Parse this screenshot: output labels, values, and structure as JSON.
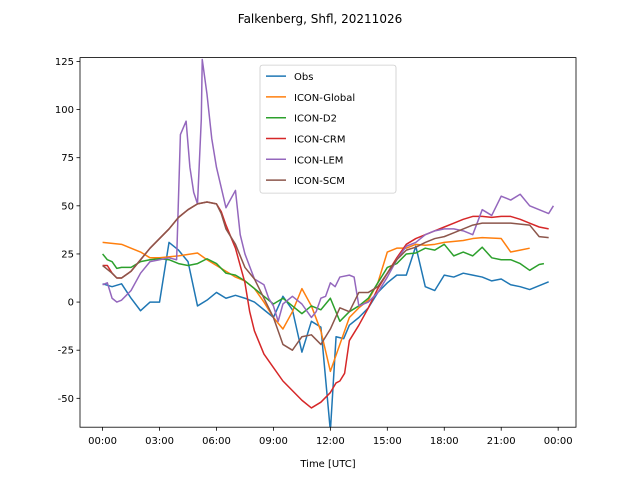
{
  "chart_data": {
    "type": "line",
    "title": "Falkenberg, Shfl, 20211026",
    "xlabel": "Time [UTC]",
    "xlim": [
      -1.19,
      24.94
    ],
    "ylim": [
      -65,
      127
    ],
    "xticks": [
      {
        "value": 0,
        "label": "00:00"
      },
      {
        "value": 3,
        "label": "03:00"
      },
      {
        "value": 6,
        "label": "06:00"
      },
      {
        "value": 9,
        "label": "09:00"
      },
      {
        "value": 12,
        "label": "12:00"
      },
      {
        "value": 15,
        "label": "15:00"
      },
      {
        "value": 18,
        "label": "18:00"
      },
      {
        "value": 21,
        "label": "21:00"
      },
      {
        "value": 24,
        "label": "00:00"
      }
    ],
    "yticks": [
      -50,
      -25,
      0,
      25,
      50,
      75,
      100,
      125
    ],
    "legend": "upper center",
    "series": [
      {
        "name": "Obs",
        "color": "#1f77b4",
        "x": [
          0,
          0.5,
          1,
          1.5,
          2,
          2.5,
          3,
          3.5,
          4,
          4.5,
          5,
          5.5,
          6,
          6.5,
          7,
          7.5,
          8,
          8.5,
          9,
          9.5,
          10,
          10.5,
          11,
          11.5,
          12,
          12.3,
          12.7,
          13,
          13.5,
          14,
          14.5,
          15,
          15.5,
          16,
          16.5,
          17,
          17.5,
          18,
          18.5,
          19,
          19.5,
          20,
          20.5,
          21,
          21.5,
          22,
          22.5,
          23,
          23.5
        ],
        "values": [
          9.5,
          8,
          9.5,
          2,
          -4.5,
          0,
          0,
          31,
          27,
          21,
          -2,
          1,
          5,
          2,
          3.5,
          2,
          0,
          -4,
          -8,
          3,
          -4,
          -26,
          -10,
          -13,
          -67,
          -18,
          -19,
          -12,
          -8,
          -3,
          5,
          10,
          14,
          14,
          29,
          8,
          6,
          14,
          13,
          15,
          14,
          13,
          11,
          12,
          9,
          8,
          6.5,
          8.5,
          10.5
        ]
      },
      {
        "name": "ICON-Global",
        "color": "#ff7f0e",
        "x": [
          0,
          1,
          2,
          2.5,
          3,
          4,
          5,
          5.5,
          6,
          6.5,
          7,
          7.5,
          8,
          8.5,
          9,
          9.5,
          10,
          10.5,
          11,
          11.5,
          12,
          12.5,
          13,
          13.5,
          14,
          14.5,
          15,
          15.5,
          16,
          16.5,
          17,
          17.5,
          18,
          19,
          19.5,
          20,
          21,
          21.5,
          22,
          22.5
        ],
        "values": [
          31,
          30,
          26,
          23,
          23,
          24,
          25.5,
          22,
          19,
          16,
          13,
          11,
          7,
          0,
          -8,
          -14,
          -5,
          7,
          -2,
          -15,
          -36,
          -22,
          -8,
          -3,
          1,
          10,
          26,
          28,
          28,
          30,
          29.5,
          30,
          31,
          32,
          33,
          33.5,
          33,
          26,
          27,
          28
        ]
      },
      {
        "name": "ICON-D2",
        "color": "#2ca02c",
        "x": [
          0,
          0.25,
          0.5,
          0.75,
          1,
          1.5,
          2,
          2.5,
          3,
          3.5,
          4,
          4.5,
          5,
          5.5,
          6,
          6.5,
          7,
          7.5,
          8,
          8.5,
          9,
          9.5,
          10,
          10.5,
          11,
          11.5,
          12,
          12.5,
          13,
          13.5,
          14,
          14.5,
          15,
          15.5,
          16,
          16.5,
          17,
          17.5,
          18,
          18.5,
          19,
          19.5,
          20,
          20.5,
          21,
          21.5,
          22,
          22.5,
          23,
          23.25
        ],
        "values": [
          25,
          22,
          21,
          17.5,
          18,
          18,
          21,
          22,
          22.5,
          22,
          20,
          19,
          20,
          22.5,
          20,
          15,
          14,
          11,
          7,
          3,
          -1,
          2,
          -2,
          -6,
          -2,
          -4,
          2,
          -10,
          -5,
          -2,
          2,
          10,
          18,
          20,
          25,
          25.5,
          28,
          27,
          30,
          24,
          26,
          24,
          28.5,
          23,
          22,
          22,
          20,
          16.5,
          19.5,
          20
        ]
      },
      {
        "name": "ICON-CRM",
        "color": "#d62728",
        "x": [
          0,
          0.25,
          0.5,
          0.75,
          1,
          1.5,
          2,
          2.5,
          3,
          3.5,
          4,
          4.5,
          5,
          5.5,
          6,
          6.25,
          6.5,
          7,
          7.5,
          7.75,
          8,
          8.5,
          9,
          9.5,
          10,
          10.5,
          11,
          11.5,
          12,
          12.3,
          12.5,
          12.75,
          13,
          13.5,
          14,
          14.5,
          15,
          15.5,
          16,
          16.5,
          17,
          17.5,
          18,
          18.5,
          19,
          19.5,
          20,
          20.5,
          21,
          21.5,
          22,
          22.5,
          23,
          23.5
        ],
        "values": [
          19,
          19,
          15,
          12.5,
          12.5,
          16,
          22,
          28,
          33,
          38,
          44,
          48,
          51,
          52,
          51,
          47,
          40,
          28,
          10,
          -5,
          -15,
          -27,
          -34,
          -41,
          -46,
          -51,
          -55,
          -52,
          -47,
          -42,
          -41,
          -37,
          -20,
          -12,
          -3,
          7,
          15,
          23,
          30,
          33,
          35,
          37,
          39,
          41,
          43,
          44.5,
          44.5,
          44,
          44.5,
          44.5,
          43,
          41,
          39,
          38
        ]
      },
      {
        "name": "ICON-LEM",
        "color": "#9467bd",
        "x": [
          0,
          0.25,
          0.5,
          0.75,
          1,
          1.5,
          2,
          2.5,
          3,
          3.5,
          3.9,
          4.1,
          4.4,
          4.6,
          4.8,
          5,
          5.2,
          5.25,
          5.5,
          5.75,
          6,
          6.5,
          7,
          7.25,
          7.5,
          8,
          8.5,
          8.75,
          9,
          9.25,
          9.5,
          10,
          10.5,
          11,
          11.25,
          11.5,
          11.75,
          12,
          12.25,
          12.5,
          13,
          13.25,
          13.5,
          14,
          14.5,
          15,
          15.5,
          16,
          16.5,
          17,
          17.5,
          18,
          18.5,
          19,
          19.5,
          20,
          20.5,
          21,
          21.5,
          22,
          22.5,
          23,
          23.5,
          23.75
        ],
        "values": [
          9,
          10,
          2,
          0,
          1,
          6,
          15,
          21,
          22,
          23,
          22,
          87,
          94,
          70,
          57,
          51,
          95,
          126,
          108,
          85,
          70,
          49,
          58,
          35,
          25,
          12,
          9,
          2,
          -2,
          -10,
          -1,
          3,
          -1,
          -8,
          -5,
          2,
          3,
          10,
          8,
          13,
          14,
          13,
          -2,
          0,
          5,
          13,
          22,
          29,
          31,
          35,
          37,
          38,
          38,
          37,
          35,
          48,
          45,
          55,
          53,
          56,
          50,
          48,
          46,
          50
        ]
      },
      {
        "name": "ICON-SCM",
        "color": "#8c564b",
        "x": [
          0,
          0.5,
          0.75,
          1,
          1.5,
          2,
          2.5,
          3,
          3.5,
          4,
          4.5,
          5,
          5.5,
          6,
          6.25,
          6.5,
          7,
          7.5,
          8,
          8.5,
          9,
          9.5,
          10,
          10.5,
          11,
          11.5,
          12,
          12.5,
          13,
          13.5,
          14,
          14.5,
          15,
          15.5,
          16,
          16.5,
          17,
          17.5,
          18,
          18.5,
          19,
          19.5,
          20,
          20.5,
          21,
          21.5,
          22,
          22.5,
          23,
          23.5
        ],
        "values": [
          19,
          15,
          12.5,
          12.5,
          16,
          22,
          28,
          33,
          38,
          44,
          48,
          51,
          52,
          51,
          46,
          38,
          30,
          18,
          12,
          2,
          -8,
          -22,
          -25,
          -18,
          -17,
          -22,
          -14,
          -3,
          -5,
          5,
          5,
          8,
          15,
          22,
          27,
          28.5,
          31,
          33,
          34,
          36,
          38,
          40,
          41,
          41,
          41,
          41,
          40.5,
          40,
          34,
          33.5
        ]
      }
    ]
  }
}
